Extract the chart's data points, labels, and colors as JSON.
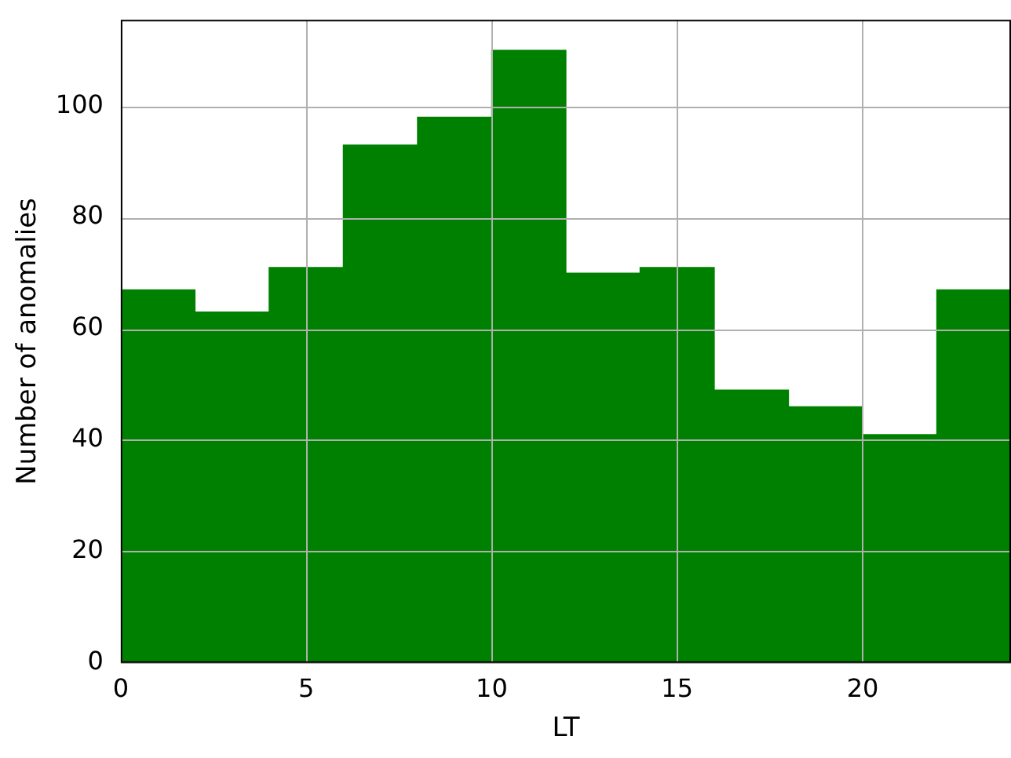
{
  "chart_data": {
    "type": "histogram",
    "xlabel": "LT",
    "ylabel": "Number of anomalies",
    "bins": [
      0,
      2,
      4,
      6,
      8,
      10,
      12,
      14,
      16,
      18,
      20,
      22,
      24
    ],
    "values": [
      67,
      63,
      71,
      93,
      98,
      110,
      70,
      71,
      49,
      46,
      41,
      67
    ],
    "color": "#008000",
    "xlim": [
      0,
      24
    ],
    "xticks": [
      0,
      5,
      10,
      15,
      20
    ],
    "ylim": [
      0,
      115.5
    ],
    "yticks": [
      0,
      20,
      40,
      60,
      80,
      100
    ],
    "grid": true
  }
}
